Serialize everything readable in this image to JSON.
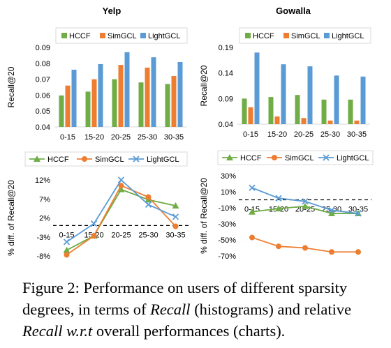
{
  "colors": {
    "hccf": "#70ad47",
    "simgcl": "#ed7d31",
    "lightgcl": "#5b9bd5",
    "axis": "#d9d9d9",
    "text": "#000000"
  },
  "chart_data": [
    {
      "type": "bar",
      "title": "Yelp",
      "ylabel": "Recall@20",
      "categories": [
        "0-15",
        "15-20",
        "20-25",
        "25-30",
        "30-35"
      ],
      "yticks": [
        "0.04",
        "0.05",
        "0.06",
        "0.07",
        "0.08",
        "0.09"
      ],
      "ylim": [
        0.04,
        0.09
      ],
      "legend_position": "top",
      "series": [
        {
          "name": "HCCF",
          "values": [
            0.0598,
            0.0622,
            0.07,
            0.068,
            0.067
          ]
        },
        {
          "name": "SimGCL",
          "values": [
            0.066,
            0.07,
            0.079,
            0.0773,
            0.072
          ]
        },
        {
          "name": "LightGCL",
          "values": [
            0.076,
            0.0795,
            0.087,
            0.0838,
            0.0808
          ]
        }
      ]
    },
    {
      "type": "bar",
      "title": "Gowalla",
      "ylabel": "Recall@20",
      "categories": [
        "0-15",
        "15-20",
        "20-25",
        "25-30",
        "30-35"
      ],
      "yticks": [
        "0.04",
        "0.09",
        "0.14",
        "0.19"
      ],
      "ylim": [
        0.04,
        0.19
      ],
      "legend_position": "top",
      "series": [
        {
          "name": "HCCF",
          "values": [
            0.09,
            0.093,
            0.097,
            0.088,
            0.088
          ]
        },
        {
          "name": "SimGCL",
          "values": [
            0.073,
            0.055,
            0.052,
            0.047,
            0.047
          ]
        },
        {
          "name": "LightGCL",
          "values": [
            0.18,
            0.157,
            0.153,
            0.135,
            0.133
          ]
        }
      ]
    },
    {
      "type": "line",
      "ylabel": "% diff. of Recall@20",
      "categories": [
        "0-15",
        "15-20",
        "20-25",
        "25-30",
        "30-35"
      ],
      "yticks": [
        "-8%",
        "-3%",
        "2%",
        "7%",
        "12%"
      ],
      "ylim": [
        -8,
        12
      ],
      "baseline": 0,
      "legend_position": "top",
      "series": [
        {
          "name": "HCCF",
          "values": [
            -6.5,
            -2.7,
            9.5,
            6.8,
            5.2
          ]
        },
        {
          "name": "SimGCL",
          "values": [
            -7.7,
            -2.7,
            10.5,
            7.5,
            -0.2
          ]
        },
        {
          "name": "LightGCL",
          "values": [
            -4.3,
            0.5,
            12.0,
            5.5,
            2.3
          ]
        }
      ]
    },
    {
      "type": "line",
      "ylabel": "% diff. of Recall@20",
      "categories": [
        "0-15",
        "15-20",
        "20-25",
        "25-30",
        "30-35"
      ],
      "yticks": [
        "-70%",
        "-50%",
        "-30%",
        "-10%",
        "10%",
        "30%"
      ],
      "ylim": [
        -70,
        30
      ],
      "baseline": 0,
      "legend_position": "top",
      "series": [
        {
          "name": "HCCF",
          "values": [
            -15,
            -11,
            -8,
            -17,
            -17
          ]
        },
        {
          "name": "SimGCL",
          "values": [
            -47,
            -58,
            -60,
            -65,
            -65
          ]
        },
        {
          "name": "LightGCL",
          "values": [
            15,
            2,
            -2,
            -13,
            -17
          ]
        }
      ]
    }
  ],
  "caption": {
    "p1": "Figure 2: Performance on users of different sparsity degrees, in terms of ",
    "i1": "Recall",
    "p2": " (histograms) and relative ",
    "i2": "Recall w.r.t",
    "p3": " overall performances (charts)."
  }
}
